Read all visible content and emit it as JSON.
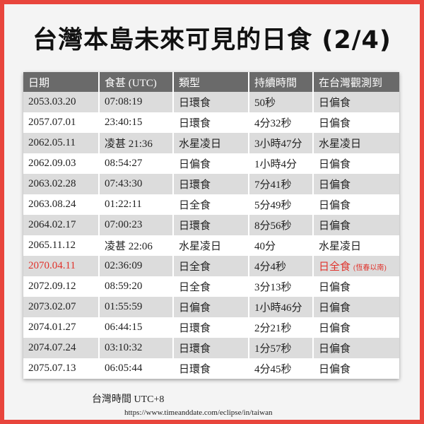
{
  "header": {
    "title": "台灣本島未來可見的日食 (2/4)"
  },
  "table": {
    "columns": [
      "日期",
      "食甚 (UTC)",
      "類型",
      "持續時間",
      "在台灣觀測到"
    ],
    "rows": [
      [
        "2053.03.20",
        "07:08:19",
        "日環食",
        "50秒",
        "日偏食"
      ],
      [
        "2057.07.01",
        "23:40:15",
        "日環食",
        "4分32秒",
        "日偏食"
      ],
      [
        "2062.05.11",
        "凌甚 21:36",
        "水星凌日",
        "3小時47分",
        "水星凌日"
      ],
      [
        "2062.09.03",
        "08:54:27",
        "日偏食",
        "1小時4分",
        "日偏食"
      ],
      [
        "2063.02.28",
        "07:43:30",
        "日環食",
        "7分41秒",
        "日偏食"
      ],
      [
        "2063.08.24",
        "01:22:11",
        "日全食",
        "5分49秒",
        "日偏食"
      ],
      [
        "2064.02.17",
        "07:00:23",
        "日環食",
        "8分56秒",
        "日偏食"
      ],
      [
        "2065.11.12",
        "凌甚 22:06",
        "水星凌日",
        "40分",
        "水星凌日"
      ],
      [
        "2070.04.11",
        "02:36:09",
        "日全食",
        "4分4秒",
        "日全食"
      ],
      [
        "2072.09.12",
        "08:59:20",
        "日全食",
        "3分13秒",
        "日偏食"
      ],
      [
        "2073.02.07",
        "01:55:59",
        "日偏食",
        "1小時46分",
        "日偏食"
      ],
      [
        "2074.01.27",
        "06:44:15",
        "日環食",
        "2分21秒",
        "日偏食"
      ],
      [
        "2074.07.24",
        "03:10:32",
        "日環食",
        "1分57秒",
        "日偏食"
      ],
      [
        "2075.07.13",
        "06:05:44",
        "日環食",
        "4分45秒",
        "日偏食"
      ]
    ],
    "highlight_note": "(恆春以南)"
  },
  "footer": {
    "timezone": "台灣時間 UTC+8",
    "source": "https://www.timeanddate.com/eclipse/in/taiwan"
  }
}
